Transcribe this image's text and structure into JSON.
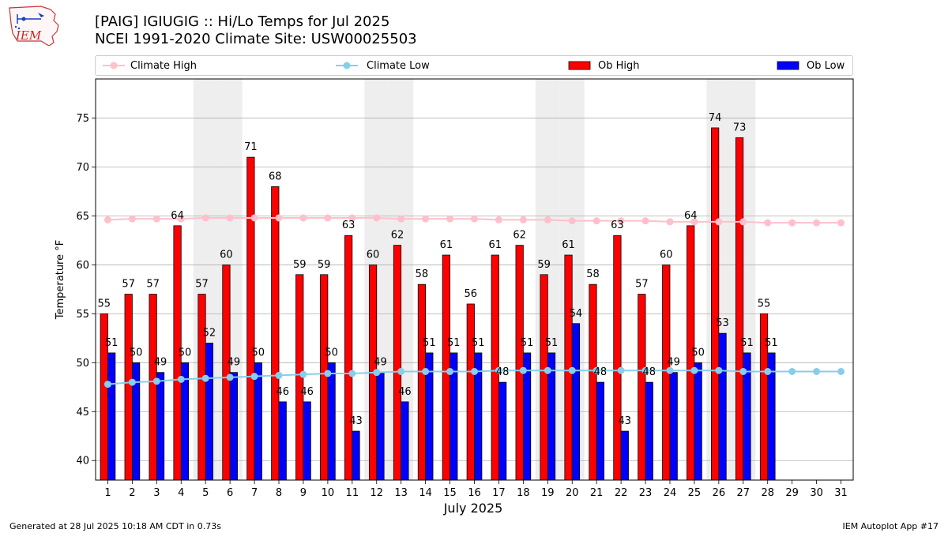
{
  "title_line1": "[PAIG] IGIUGIG :: Hi/Lo Temps for Jul 2025",
  "title_line2": "NCEI 1991-2020 Climate Site: USW00025503",
  "logo_text": "IEM",
  "footer_left": "Generated at 28 Jul 2025 10:18 AM CDT in 0.73s",
  "footer_right": "IEM Autoplot App #17",
  "colors": {
    "ob_high": "#ff0000",
    "ob_low": "#0000ff",
    "climate_high": "#ffc0cb",
    "climate_low": "#87ceeb",
    "weekend_shade": "#eeeeee",
    "grid": "#b0b0b0"
  },
  "chart_data": {
    "type": "bar",
    "xlabel": "July 2025",
    "ylabel": "Temperature °F",
    "ylim": [
      38,
      79
    ],
    "yticks": [
      40,
      45,
      50,
      55,
      60,
      65,
      70,
      75
    ],
    "grid": true,
    "legend_placement": "top",
    "categories": [
      "1",
      "2",
      "3",
      "4",
      "5",
      "6",
      "7",
      "8",
      "9",
      "10",
      "11",
      "12",
      "13",
      "14",
      "15",
      "16",
      "17",
      "18",
      "19",
      "20",
      "21",
      "22",
      "23",
      "24",
      "25",
      "26",
      "27",
      "28",
      "29",
      "30",
      "31"
    ],
    "weekend_days": [
      5,
      6,
      12,
      13,
      19,
      20,
      26,
      27
    ],
    "series": [
      {
        "name": "Climate High",
        "kind": "line",
        "values": [
          64.6,
          64.7,
          64.7,
          64.7,
          64.8,
          64.8,
          64.8,
          64.8,
          64.8,
          64.8,
          64.8,
          64.8,
          64.7,
          64.7,
          64.7,
          64.7,
          64.6,
          64.6,
          64.6,
          64.5,
          64.5,
          64.5,
          64.5,
          64.4,
          64.4,
          64.4,
          64.4,
          64.3,
          64.3,
          64.3,
          64.3
        ]
      },
      {
        "name": "Climate Low",
        "kind": "line",
        "values": [
          47.8,
          48.0,
          48.1,
          48.3,
          48.4,
          48.5,
          48.6,
          48.7,
          48.8,
          48.9,
          48.9,
          49.0,
          49.1,
          49.1,
          49.1,
          49.1,
          49.2,
          49.2,
          49.2,
          49.2,
          49.2,
          49.2,
          49.2,
          49.2,
          49.2,
          49.2,
          49.1,
          49.1,
          49.1,
          49.1,
          49.1
        ]
      },
      {
        "name": "Ob High",
        "kind": "bar",
        "values": [
          55,
          57,
          57,
          64,
          57,
          60,
          71,
          68,
          59,
          59,
          63,
          60,
          62,
          58,
          61,
          56,
          61,
          62,
          59,
          61,
          58,
          63,
          57,
          60,
          64,
          74,
          73,
          55,
          null,
          null,
          null
        ]
      },
      {
        "name": "Ob Low",
        "kind": "bar",
        "values": [
          51,
          50,
          49,
          50,
          52,
          49,
          50,
          46,
          46,
          50,
          43,
          49,
          46,
          51,
          51,
          51,
          48,
          51,
          51,
          54,
          48,
          43,
          48,
          49,
          50,
          53,
          51,
          51,
          null,
          null,
          null
        ]
      }
    ]
  }
}
